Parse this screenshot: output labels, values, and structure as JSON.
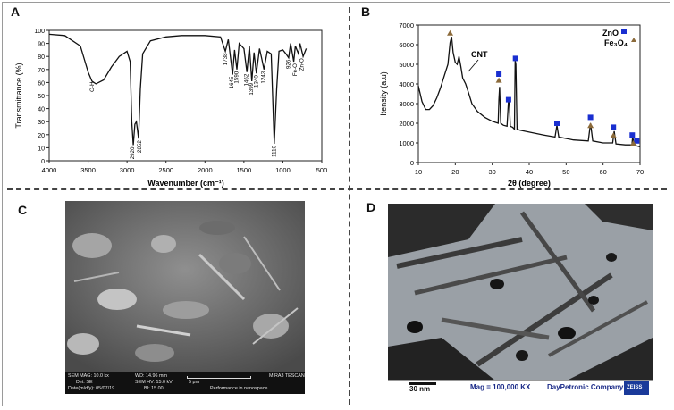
{
  "panels": {
    "a": "A",
    "b": "B",
    "c": "C",
    "d": "D"
  },
  "ftir": {
    "ylabel": "Transmittance (%)",
    "xlabel": "Wavenumber (cm⁻¹)",
    "yticks": [
      "0",
      "10",
      "20",
      "30",
      "40",
      "50",
      "60",
      "70",
      "80",
      "90",
      "100"
    ],
    "xticks": [
      "4000",
      "3500",
      "3000",
      "2500",
      "2000",
      "1500",
      "1000",
      "500"
    ],
    "peaks": [
      "O-H",
      "2920",
      "2852",
      "1738",
      "1645",
      "1590",
      "1462",
      "1399",
      "1340",
      "1243",
      "1110",
      "926",
      "Fe-O",
      "Zn-O"
    ]
  },
  "xrd": {
    "ylabel": "Itensity (a.u)",
    "xlabel": "2θ (degree)",
    "yticks": [
      "0",
      "1000",
      "2000",
      "3000",
      "4000",
      "5000",
      "6000",
      "7000"
    ],
    "xticks": [
      "10",
      "20",
      "30",
      "40",
      "50",
      "60",
      "70"
    ],
    "cnt_label": "CNT",
    "legend": {
      "zno": "ZnO",
      "fe3o4": "Fe₃O₄"
    },
    "colors": {
      "zno": "#1a2fd0",
      "fe3o4": "#8b6a3a"
    }
  },
  "sem": {
    "mag": "SEM MAG: 10.0 kx",
    "wd": "WD: 14.96 mm",
    "det": "Det: SE",
    "hv": "SEM HV: 15.0 kV",
    "scale": "5 μm",
    "date": "Date(m/d/y): 05/07/19",
    "bi": "BI: 15.00",
    "brand": "MIRA3 TESCAN",
    "tagline": "Performance in nanospace"
  },
  "tem": {
    "scale": "30 nm",
    "mag": "Mag = 100,000 KX",
    "company": "DayPetronic Company",
    "logo": "ZEISS"
  },
  "chart_data": [
    {
      "type": "line",
      "title": "",
      "xlabel": "Wavenumber (cm⁻¹)",
      "ylabel": "Transmittance (%)",
      "xlim": [
        4000,
        500
      ],
      "ylim": [
        0,
        100
      ],
      "series": [
        {
          "x": [
            4000,
            3800,
            3600,
            3500,
            3450,
            3400,
            3300,
            3200,
            3100,
            3000,
            2960,
            2940,
            2920,
            2900,
            2880,
            2852,
            2830,
            2800,
            2700,
            2500,
            2300,
            2000,
            1800,
            1738,
            1700,
            1645,
            1620,
            1590,
            1560,
            1500,
            1462,
            1430,
            1399,
            1370,
            1340,
            1300,
            1270,
            1243,
            1200,
            1150,
            1110,
            1080,
            1050,
            1000,
            960,
            926,
            900,
            860,
            840,
            800,
            780,
            740,
            700
          ],
          "y": [
            97,
            96,
            88,
            68,
            61,
            59,
            62,
            72,
            80,
            84,
            76,
            30,
            12,
            28,
            30,
            17,
            55,
            82,
            92,
            95,
            96,
            96,
            95,
            84,
            93,
            66,
            85,
            70,
            90,
            86,
            68,
            88,
            61,
            83,
            67,
            86,
            78,
            70,
            84,
            82,
            13,
            55,
            84,
            85,
            82,
            79,
            90,
            76,
            88,
            82,
            90,
            80,
            86
          ]
        }
      ],
      "annotations": [
        "O-H",
        "2920",
        "2852",
        "1738",
        "1645",
        "1590",
        "1462",
        "1399",
        "1340",
        "1243",
        "1110",
        "926",
        "Fe-O",
        "Zn-O"
      ]
    },
    {
      "type": "line",
      "title": "",
      "xlabel": "2θ (degree)",
      "ylabel": "Itensity (a.u)",
      "xlim": [
        10,
        70
      ],
      "ylim": [
        0,
        7000
      ],
      "series": [
        {
          "x": [
            10,
            11,
            12,
            13,
            14,
            15,
            16,
            17,
            18,
            18.6,
            19,
            19.4,
            20,
            20.5,
            21,
            21.5,
            22,
            22.8,
            23.5,
            24.5,
            26,
            28,
            30,
            31.6,
            31.8,
            32,
            32.3,
            33,
            34,
            34.4,
            34.6,
            34.9,
            35.5,
            36,
            36.2,
            36.4,
            36.7,
            37.5,
            40,
            44,
            47,
            47.5,
            48,
            52,
            56,
            56.6,
            57.2,
            60,
            62.6,
            63,
            63.5,
            66,
            67.8,
            68,
            68.4,
            69,
            70
          ],
          "y": [
            3900,
            3100,
            2700,
            2700,
            2900,
            3300,
            3800,
            4400,
            5000,
            6100,
            6400,
            5600,
            5100,
            5000,
            5400,
            4900,
            4300,
            4000,
            3600,
            3000,
            2600,
            2300,
            2100,
            2000,
            3200,
            3850,
            2000,
            1900,
            1850,
            3200,
            3100,
            1850,
            1800,
            1700,
            5200,
            5000,
            1700,
            1650,
            1550,
            1400,
            1300,
            1900,
            1300,
            1150,
            1100,
            2000,
            1100,
            1000,
            1000,
            1600,
            950,
            900,
            900,
            1300,
            950,
            850,
            800
          ]
        }
      ],
      "markers": {
        "zno": [
          [
            31.8,
            4500
          ],
          [
            34.4,
            3200
          ],
          [
            36.3,
            5300
          ],
          [
            47.5,
            2000
          ],
          [
            56.6,
            2300
          ],
          [
            62.8,
            1800
          ],
          [
            67.9,
            1400
          ],
          [
            69.1,
            1100
          ]
        ],
        "fe3o4": [
          [
            18.6,
            6600
          ],
          [
            31.8,
            4200
          ],
          [
            56.6,
            1900
          ],
          [
            62.8,
            1400
          ],
          [
            68.2,
            1000
          ]
        ]
      }
    }
  ]
}
